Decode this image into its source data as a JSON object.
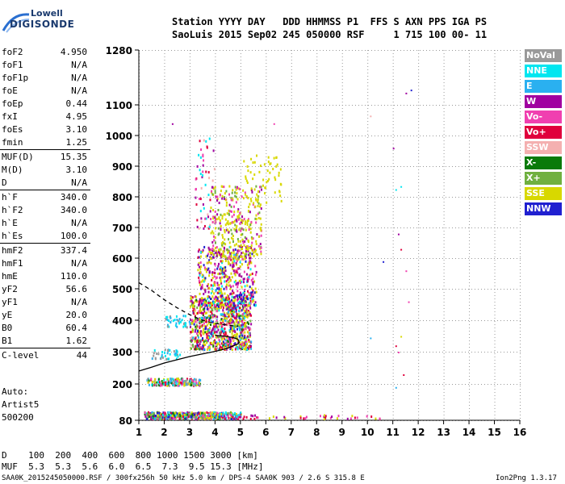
{
  "logo": {
    "line1": "Lowell",
    "line2": "DIGISONDE"
  },
  "header": {
    "row1": "Station YYYY DAY   DDD HHMMSS P1  FFS S AXN PPS IGA PS",
    "row2": "SaoLuis 2015 Sep02 245 050000 RSF     1 715 100 00- 11"
  },
  "params": {
    "group1": [
      {
        "label": "foF2",
        "value": "4.950"
      },
      {
        "label": "foF1",
        "value": "N/A"
      },
      {
        "label": "foF1p",
        "value": "N/A"
      },
      {
        "label": "foE",
        "value": "N/A"
      },
      {
        "label": "foEp",
        "value": "0.44"
      },
      {
        "label": "fxI",
        "value": "4.95"
      },
      {
        "label": "foEs",
        "value": "3.10"
      },
      {
        "label": "fmin",
        "value": "1.25"
      }
    ],
    "group2": [
      {
        "label": "MUF(D)",
        "value": "15.35"
      },
      {
        "label": "M(D)",
        "value": "3.10"
      },
      {
        "label": "D",
        "value": "N/A"
      }
    ],
    "group3": [
      {
        "label": "h`F",
        "value": "340.0"
      },
      {
        "label": "h`F2",
        "value": "340.0"
      },
      {
        "label": "h`E",
        "value": "N/A"
      },
      {
        "label": "h`Es",
        "value": "100.0"
      }
    ],
    "group4": [
      {
        "label": "hmF2",
        "value": "337.4"
      },
      {
        "label": "hmF1",
        "value": "N/A"
      },
      {
        "label": "hmE",
        "value": "110.0"
      },
      {
        "label": "yF2",
        "value": "56.6"
      },
      {
        "label": "yF1",
        "value": "N/A"
      },
      {
        "label": "yE",
        "value": "20.0"
      },
      {
        "label": "B0",
        "value": "60.4"
      },
      {
        "label": "B1",
        "value": "1.62"
      }
    ],
    "group5": [
      {
        "label": "C-level",
        "value": "44"
      }
    ]
  },
  "auto": {
    "line1": "Auto:",
    "line2": "Artist5",
    "line3": "500200"
  },
  "legend": [
    {
      "label": "NoVal",
      "color": "#9a9a9a"
    },
    {
      "label": "NNE",
      "color": "#00e6f0"
    },
    {
      "label": "E",
      "color": "#2ab0f0"
    },
    {
      "label": "W",
      "color": "#a000a0"
    },
    {
      "label": "Vo-",
      "color": "#f040b0"
    },
    {
      "label": "Vo+",
      "color": "#e0003c"
    },
    {
      "label": "SSW",
      "color": "#f4b0b0"
    },
    {
      "label": "X-",
      "color": "#0a7a0a"
    },
    {
      "label": "X+",
      "color": "#70b040"
    },
    {
      "label": "SSE",
      "color": "#d8d800"
    },
    {
      "label": "NNW",
      "color": "#2020d0"
    }
  ],
  "muf_table": {
    "row1": "D    100  200  400  600  800 1000 1500 3000 [km]",
    "row2": "MUF  5.3  5.3  5.6  6.0  6.5  7.3  9.5 15.3 [MHz]"
  },
  "footer": {
    "left": "SAA0K_2015245050000.RSF / 300fx256h 50 kHz 5.0 km / DPS-4 SAA0K 903 / 2.6 S 315.8 E",
    "right": "Ion2Png 1.3.17"
  },
  "chart_data": {
    "type": "scatter",
    "x_ticks": [
      1,
      2,
      3,
      4,
      5,
      6,
      7,
      8,
      9,
      10,
      11,
      12,
      13,
      14,
      15,
      16
    ],
    "y_ticks": [
      80,
      200,
      300,
      400,
      500,
      600,
      700,
      800,
      900,
      1000,
      1100,
      1280
    ],
    "xlim": [
      1,
      16
    ],
    "ylim": [
      80,
      1280
    ],
    "grid": true,
    "legend_position": "right",
    "traces": [
      {
        "style": "solid",
        "x": [
          1.0,
          1.5,
          2.0,
          2.5,
          3.0,
          3.5,
          4.0,
          4.4,
          4.7,
          4.9,
          4.95,
          4.9,
          4.7,
          4.3,
          4.0
        ],
        "y": [
          240,
          252,
          265,
          275,
          285,
          293,
          301,
          309,
          318,
          325,
          330,
          340,
          345,
          350,
          352
        ]
      },
      {
        "style": "dashed",
        "x": [
          1.0,
          1.5,
          2.0,
          2.5,
          3.0,
          3.5,
          4.0,
          4.5,
          4.9
        ],
        "y": [
          520,
          495,
          465,
          440,
          418,
          400,
          390,
          385,
          380
        ]
      }
    ],
    "echo_clusters": [
      {
        "region": "F-layer",
        "x_range": [
          2.8,
          5.6
        ],
        "y_range": [
          300,
          800
        ],
        "note": "dense multi-colour echoes"
      },
      {
        "region": "F-layer upper",
        "x_range": [
          4.0,
          6.6
        ],
        "y_range": [
          600,
          950
        ],
        "note": "mainly SSE echoes"
      },
      {
        "region": "Es-layer",
        "x_range": [
          1.2,
          5.0
        ],
        "y_range": [
          90,
          120
        ],
        "note": "sporadic E traces"
      },
      {
        "region": "2Es",
        "x_range": [
          1.2,
          3.5
        ],
        "y_range": [
          200,
          220
        ],
        "note": "second-hop Es"
      }
    ]
  }
}
